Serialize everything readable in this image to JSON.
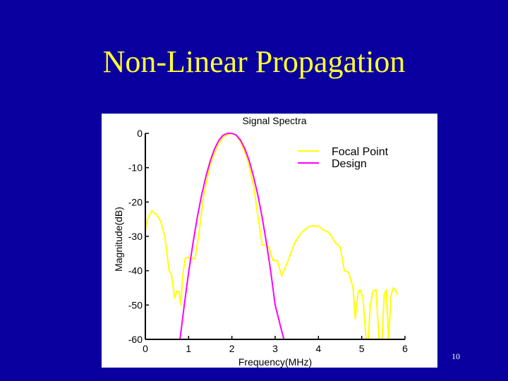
{
  "slide": {
    "title": "Non-Linear Propagation",
    "page_number": "10",
    "background_color": "#0a00a0",
    "title_color": "#ffff33"
  },
  "chart_data": {
    "type": "line",
    "title": "Signal Spectra",
    "xlabel": "Frequency(MHz)",
    "ylabel": "Magnitude(dB)",
    "xlim": [
      0,
      6
    ],
    "ylim": [
      -60,
      0
    ],
    "xticks": [
      "0",
      "1",
      "2",
      "3",
      "4",
      "5",
      "6"
    ],
    "yticks": [
      "0",
      "-10",
      "-20",
      "-30",
      "-40",
      "-50",
      "-60"
    ],
    "grid": false,
    "legend_position": "upper right",
    "series": [
      {
        "name": "Focal Point",
        "color": "#ffff00",
        "x": [
          0.0,
          0.05,
          0.15,
          0.25,
          0.35,
          0.45,
          0.55,
          0.6,
          0.68,
          0.72,
          0.78,
          0.82,
          0.86,
          0.92,
          0.98,
          1.05,
          1.15,
          1.25,
          1.35,
          1.5,
          1.65,
          1.8,
          1.9,
          2.0,
          2.1,
          2.2,
          2.35,
          2.5,
          2.6,
          2.7,
          2.78,
          2.85,
          2.95,
          3.05,
          3.15,
          3.3,
          3.45,
          3.6,
          3.8,
          4.0,
          4.1,
          4.25,
          4.4,
          4.5,
          4.6,
          4.7,
          4.8,
          4.85,
          4.92,
          4.97,
          5.03,
          5.1,
          5.15,
          5.2,
          5.26,
          5.33,
          5.4,
          5.47,
          5.52,
          5.57,
          5.62,
          5.68,
          5.73,
          5.78,
          5.82
        ],
        "y": [
          -28,
          -25,
          -22.5,
          -23.5,
          -25.5,
          -30,
          -40,
          -41,
          -48,
          -46,
          -46,
          -50,
          -42,
          -36.5,
          -36,
          -36.5,
          -36.5,
          -28,
          -18,
          -9,
          -4,
          -1,
          -0.3,
          0,
          -0.5,
          -2.5,
          -7,
          -15,
          -24,
          -32.5,
          -32.5,
          -33,
          -37,
          -37,
          -41.5,
          -37,
          -32,
          -29,
          -27,
          -27,
          -28,
          -29,
          -32,
          -33,
          -40,
          -40.5,
          -45,
          -54,
          -46,
          -45.5,
          -48,
          -60,
          -60,
          -50,
          -46,
          -45.5,
          -60,
          -60,
          -47,
          -45.5,
          -60,
          -47,
          -45,
          -45.5,
          -47
        ]
      },
      {
        "name": "Design",
        "color": "#ff00ff",
        "x": [
          0.8,
          0.9,
          1.0,
          1.1,
          1.2,
          1.3,
          1.4,
          1.5,
          1.6,
          1.7,
          1.8,
          1.9,
          2.0,
          2.1,
          2.2,
          2.3,
          2.4,
          2.5,
          2.6,
          2.7,
          2.8,
          2.9,
          3.0,
          3.1,
          3.2
        ],
        "y": [
          -60,
          -50,
          -40.5,
          -32,
          -24.5,
          -18,
          -12.5,
          -8,
          -4.5,
          -2,
          -0.5,
          0,
          0,
          -0.5,
          -2,
          -4.5,
          -8,
          -12.5,
          -18,
          -24.5,
          -32,
          -40.5,
          -50,
          -55,
          -60
        ]
      }
    ]
  }
}
